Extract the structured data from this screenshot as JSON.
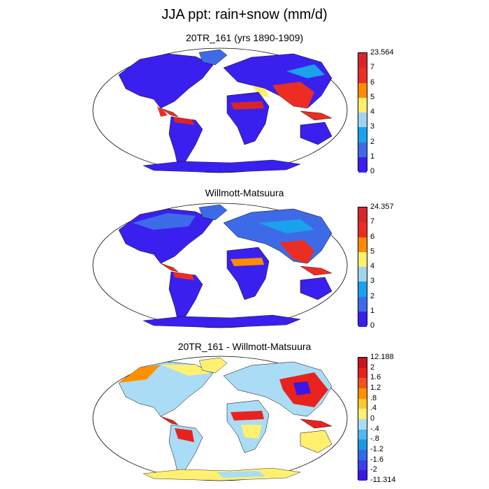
{
  "title": "JJA ppt: rain+snow (mm/d)",
  "panels": [
    {
      "title": "20TR_161 (yrs 1890-1909)",
      "colorbar": {
        "labels": [
          "23.564",
          "7",
          "6",
          "5",
          "4",
          "3",
          "2",
          "1",
          "0"
        ],
        "colors": [
          "#d7262b",
          "#ec2d22",
          "#ff8c00",
          "#fff06b",
          "#9fd4f0",
          "#1aa2ec",
          "#3d6be8",
          "#3a20ee"
        ]
      }
    },
    {
      "title": "Willmott-Matsuura",
      "colorbar": {
        "labels": [
          "24.357",
          "7",
          "6",
          "5",
          "4",
          "3",
          "2",
          "1",
          "0"
        ],
        "colors": [
          "#d7262b",
          "#ec2d22",
          "#ff8c00",
          "#fff06b",
          "#9fd4f0",
          "#1aa2ec",
          "#3d6be8",
          "#3a20ee"
        ]
      }
    },
    {
      "title": "20TR_161 - Willmott-Matsuura",
      "colorbar": {
        "labels": [
          "12.188",
          "2",
          "1.6",
          "1.2",
          ".8",
          ".4",
          "0",
          "-.4",
          "-.8",
          "-1.2",
          "-1.6",
          "-2",
          "-11.314"
        ],
        "colors": [
          "#c8141e",
          "#e8231e",
          "#f55020",
          "#ff9000",
          "#ffc830",
          "#fff070",
          "#aadcf5",
          "#4fb8f0",
          "#1e96e6",
          "#2f6be6",
          "#3a40e8",
          "#3a16e8"
        ]
      }
    }
  ]
}
